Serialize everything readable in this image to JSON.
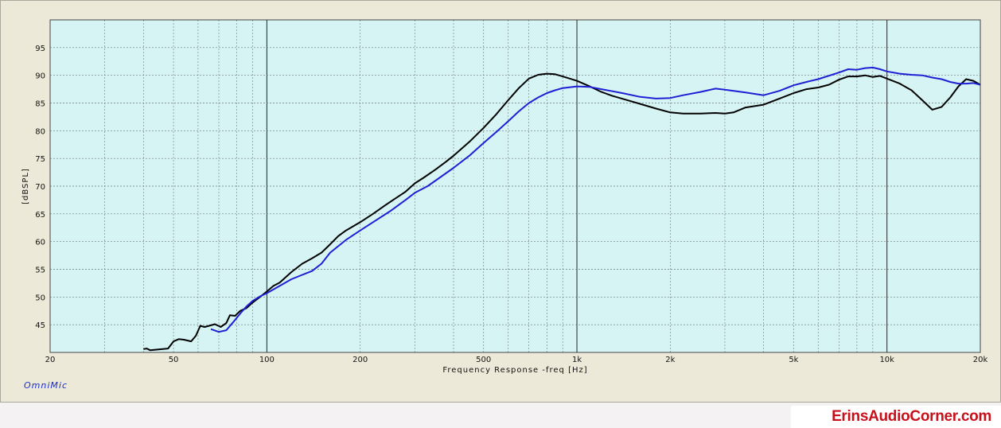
{
  "brand_label": "OmniMic",
  "watermark": "ErinsAudioCorner.com",
  "chart_data": {
    "type": "line",
    "title": "",
    "xlabel": "Frequency Response -freq [Hz]",
    "ylabel": "[dBSPL]",
    "xscale": "log",
    "xlim": [
      20,
      20000
    ],
    "ylim": [
      40,
      100
    ],
    "grid": true,
    "legend": "none",
    "xticks": [
      {
        "value": 20,
        "label": "20"
      },
      {
        "value": 50,
        "label": "50"
      },
      {
        "value": 100,
        "label": "100"
      },
      {
        "value": 200,
        "label": "200"
      },
      {
        "value": 500,
        "label": "500"
      },
      {
        "value": 1000,
        "label": "1k"
      },
      {
        "value": 2000,
        "label": "2k"
      },
      {
        "value": 5000,
        "label": "5k"
      },
      {
        "value": 10000,
        "label": "10k"
      },
      {
        "value": 20000,
        "label": "20k"
      }
    ],
    "yticks": [
      45,
      50,
      55,
      60,
      65,
      70,
      75,
      80,
      85,
      90,
      95
    ],
    "colors": {
      "plot_bg": "#d6f4f4",
      "grid": "#6f7878",
      "decade": "#222222",
      "black_series": "#000000",
      "blue_series": "#1f1fd6"
    },
    "series": [
      {
        "color": "#000000",
        "points": [
          [
            40,
            40.6
          ],
          [
            41,
            40.7
          ],
          [
            42,
            40.4
          ],
          [
            48,
            40.7
          ],
          [
            50,
            42
          ],
          [
            52,
            42.4
          ],
          [
            54,
            42.3
          ],
          [
            57,
            42
          ],
          [
            59,
            43
          ],
          [
            61,
            44.8
          ],
          [
            63,
            44.6
          ],
          [
            65,
            44.8
          ],
          [
            68,
            45.1
          ],
          [
            71,
            44.6
          ],
          [
            74,
            45.3
          ],
          [
            76,
            46.7
          ],
          [
            79,
            46.6
          ],
          [
            82,
            47.5
          ],
          [
            86,
            48
          ],
          [
            90,
            49
          ],
          [
            95,
            50
          ],
          [
            100,
            51
          ],
          [
            105,
            52
          ],
          [
            110,
            52.6
          ],
          [
            120,
            54.5
          ],
          [
            130,
            56
          ],
          [
            140,
            57
          ],
          [
            150,
            58
          ],
          [
            160,
            59.5
          ],
          [
            170,
            61
          ],
          [
            180,
            62
          ],
          [
            200,
            63.5
          ],
          [
            220,
            65
          ],
          [
            240,
            66.5
          ],
          [
            260,
            67.8
          ],
          [
            280,
            69
          ],
          [
            300,
            70.5
          ],
          [
            320,
            71.5
          ],
          [
            350,
            73
          ],
          [
            380,
            74.5
          ],
          [
            400,
            75.5
          ],
          [
            450,
            78
          ],
          [
            500,
            80.5
          ],
          [
            550,
            83
          ],
          [
            600,
            85.5
          ],
          [
            650,
            87.7
          ],
          [
            700,
            89.4
          ],
          [
            750,
            90.1
          ],
          [
            800,
            90.3
          ],
          [
            850,
            90.2
          ],
          [
            900,
            89.8
          ],
          [
            1000,
            89
          ],
          [
            1100,
            88
          ],
          [
            1200,
            87
          ],
          [
            1300,
            86.3
          ],
          [
            1500,
            85.3
          ],
          [
            1800,
            84
          ],
          [
            2000,
            83.3
          ],
          [
            2200,
            83.1
          ],
          [
            2500,
            83.1
          ],
          [
            2800,
            83.2
          ],
          [
            3000,
            83.1
          ],
          [
            3200,
            83.3
          ],
          [
            3500,
            84.2
          ],
          [
            4000,
            84.7
          ],
          [
            4500,
            85.8
          ],
          [
            5000,
            86.8
          ],
          [
            5500,
            87.5
          ],
          [
            6000,
            87.8
          ],
          [
            6500,
            88.3
          ],
          [
            7000,
            89.2
          ],
          [
            7500,
            89.8
          ],
          [
            8000,
            89.8
          ],
          [
            8500,
            90
          ],
          [
            9000,
            89.7
          ],
          [
            9500,
            89.9
          ],
          [
            10000,
            89.4
          ],
          [
            11000,
            88.5
          ],
          [
            12000,
            87.3
          ],
          [
            13000,
            85.5
          ],
          [
            14000,
            83.8
          ],
          [
            15000,
            84.3
          ],
          [
            16000,
            86
          ],
          [
            17000,
            88
          ],
          [
            18000,
            89.3
          ],
          [
            19000,
            89
          ],
          [
            20000,
            88.3
          ]
        ]
      },
      {
        "color": "#1f1fd6",
        "points": [
          [
            66,
            44.2
          ],
          [
            70,
            43.7
          ],
          [
            74,
            44
          ],
          [
            78,
            45.5
          ],
          [
            82,
            47
          ],
          [
            86,
            48.3
          ],
          [
            90,
            49.3
          ],
          [
            95,
            50.1
          ],
          [
            100,
            50.7
          ],
          [
            110,
            52
          ],
          [
            120,
            53.2
          ],
          [
            130,
            54
          ],
          [
            140,
            54.7
          ],
          [
            150,
            56
          ],
          [
            160,
            58
          ],
          [
            180,
            60.3
          ],
          [
            200,
            62
          ],
          [
            220,
            63.5
          ],
          [
            250,
            65.5
          ],
          [
            280,
            67.5
          ],
          [
            300,
            68.8
          ],
          [
            330,
            70
          ],
          [
            350,
            71
          ],
          [
            400,
            73.3
          ],
          [
            450,
            75.5
          ],
          [
            500,
            77.8
          ],
          [
            550,
            79.8
          ],
          [
            600,
            81.7
          ],
          [
            650,
            83.5
          ],
          [
            700,
            85
          ],
          [
            750,
            86
          ],
          [
            800,
            86.8
          ],
          [
            850,
            87.3
          ],
          [
            900,
            87.7
          ],
          [
            1000,
            88
          ],
          [
            1100,
            87.9
          ],
          [
            1200,
            87.5
          ],
          [
            1400,
            86.8
          ],
          [
            1600,
            86.1
          ],
          [
            1800,
            85.8
          ],
          [
            2000,
            85.9
          ],
          [
            2200,
            86.4
          ],
          [
            2500,
            87
          ],
          [
            2800,
            87.6
          ],
          [
            3000,
            87.4
          ],
          [
            3500,
            86.9
          ],
          [
            4000,
            86.4
          ],
          [
            4500,
            87.2
          ],
          [
            5000,
            88.2
          ],
          [
            5500,
            88.8
          ],
          [
            6000,
            89.3
          ],
          [
            7000,
            90.5
          ],
          [
            7500,
            91.1
          ],
          [
            8000,
            91
          ],
          [
            8500,
            91.3
          ],
          [
            9000,
            91.4
          ],
          [
            9500,
            91.1
          ],
          [
            10000,
            90.7
          ],
          [
            11000,
            90.3
          ],
          [
            12000,
            90.1
          ],
          [
            13000,
            90
          ],
          [
            14000,
            89.6
          ],
          [
            15000,
            89.3
          ],
          [
            16000,
            88.8
          ],
          [
            17000,
            88.5
          ],
          [
            18000,
            88.5
          ],
          [
            19000,
            88.6
          ],
          [
            20000,
            88.3
          ]
        ]
      }
    ]
  }
}
